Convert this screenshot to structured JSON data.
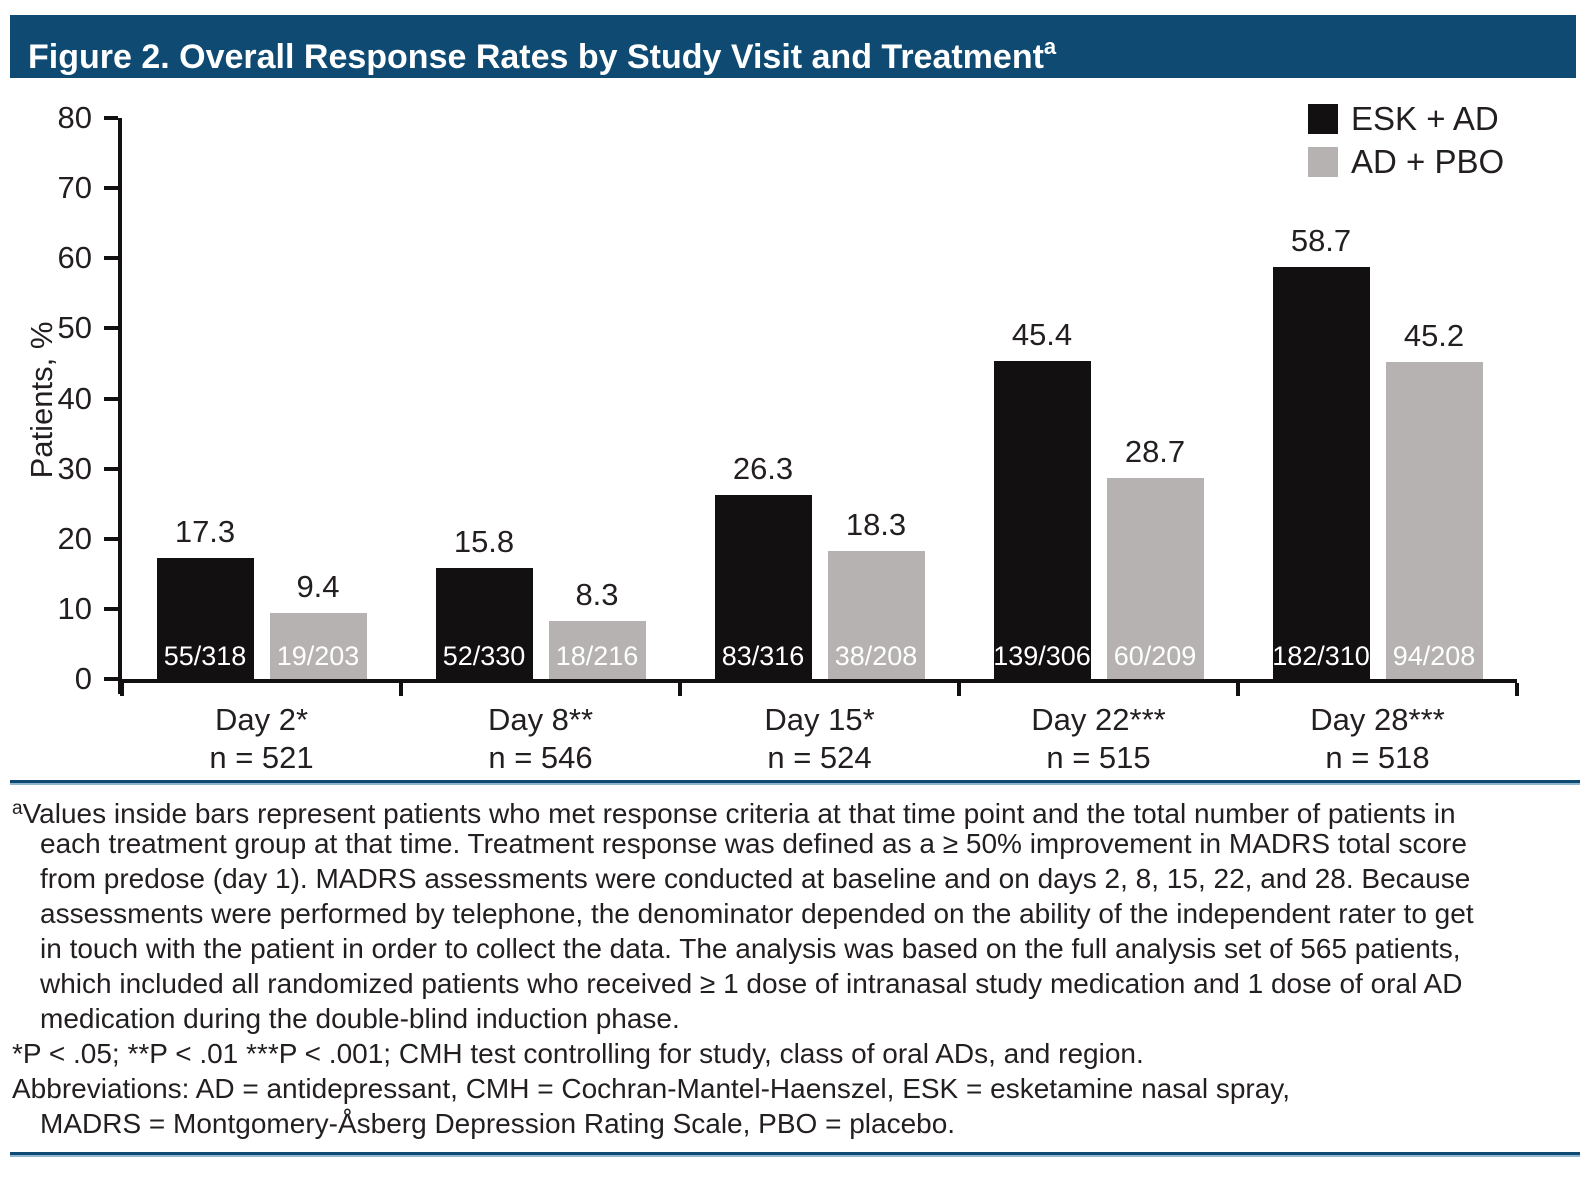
{
  "header": {
    "title": "Figure 2. Overall Response Rates by Study Visit and Treatment",
    "superscript": "a"
  },
  "colors": {
    "accent_blue": "#0e4a72",
    "accent_blue_light": "#8fb6d0",
    "bar_black": "#131011",
    "bar_gray": "#b5b2b1",
    "text": "#231f20",
    "inside_label_text": "#ffffff"
  },
  "chart_data": {
    "type": "bar",
    "title": "Overall Response Rates by Study Visit and Treatment",
    "xlabel": "",
    "ylabel": "Patients, %",
    "ylim": [
      0,
      80
    ],
    "ytick_step": 10,
    "grid": false,
    "legend_position": "top-right",
    "categories": [
      "Day 2*",
      "Day 8**",
      "Day 15*",
      "Day 22***",
      "Day 28***"
    ],
    "category_sublabels": [
      "n = 521",
      "n = 546",
      "n = 524",
      "n = 515",
      "n = 518"
    ],
    "series": [
      {
        "name": "ESK + AD",
        "color": "#131011",
        "values": [
          17.3,
          15.8,
          26.3,
          45.4,
          58.7
        ],
        "inside_labels": [
          "55/318",
          "52/330",
          "83/316",
          "139/306",
          "182/310"
        ]
      },
      {
        "name": "AD + PBO",
        "color": "#b5b2b1",
        "values": [
          9.4,
          8.3,
          18.3,
          28.7,
          45.2
        ],
        "inside_labels": [
          "19/203",
          "18/216",
          "38/208",
          "60/209",
          "94/208"
        ]
      }
    ]
  },
  "footnotes": {
    "lines": [
      {
        "sup": "a",
        "indent": false,
        "text": "Values inside bars represent patients who met response criteria at that time point and the total number of patients in"
      },
      {
        "indent": true,
        "text": "each treatment group at that time. Treatment response was defined as a ≥ 50% improvement in MADRS total score"
      },
      {
        "indent": true,
        "text": "from predose (day 1). MADRS assessments were conducted at baseline and on days 2, 8, 15, 22, and 28. Because"
      },
      {
        "indent": true,
        "text": "assessments were performed by telephone, the denominator depended on the ability of the independent rater to get"
      },
      {
        "indent": true,
        "text": "in touch with the patient in order to collect the data. The analysis was based on the full analysis set of 565 patients,"
      },
      {
        "indent": true,
        "text": "which included all randomized patients who received ≥ 1 dose of intranasal study medication and 1 dose of oral AD"
      },
      {
        "indent": true,
        "text": "medication during the double-blind induction phase."
      },
      {
        "indent": false,
        "text": "*P < .05; **P < .01 ***P < .001; CMH test controlling for study, class of oral ADs, and region."
      },
      {
        "indent": false,
        "text": "Abbreviations: AD = antidepressant, CMH = Cochran-Mantel-Haenszel, ESK = esketamine nasal spray,"
      },
      {
        "indent": true,
        "text": "MADRS = Montgomery-Åsberg Depression Rating Scale, PBO = placebo."
      }
    ]
  }
}
